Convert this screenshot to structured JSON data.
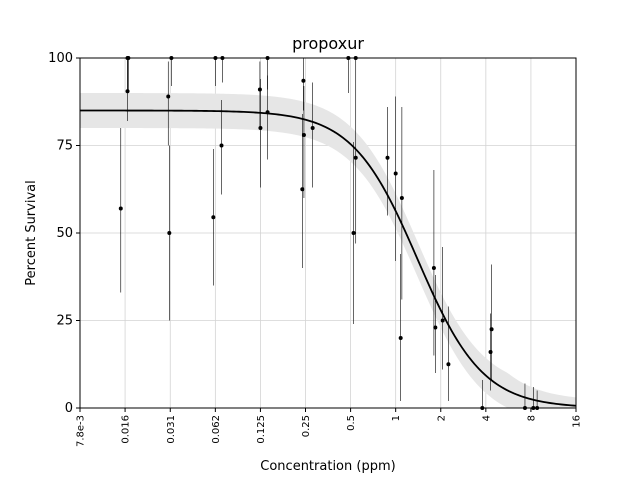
{
  "chart_data": {
    "type": "scatter",
    "title": "propoxur",
    "xlabel": "Concentration (ppm)",
    "ylabel": "Percent Survival",
    "x_scale": "log2",
    "xlim": [
      0.0078,
      16
    ],
    "ylim": [
      0,
      100
    ],
    "x_ticks": [
      {
        "value": 0.0078,
        "label": "7.8e-3"
      },
      {
        "value": 0.0156,
        "label": "0.016"
      },
      {
        "value": 0.03125,
        "label": "0.031"
      },
      {
        "value": 0.0625,
        "label": "0.062"
      },
      {
        "value": 0.125,
        "label": "0.125"
      },
      {
        "value": 0.25,
        "label": "0.25"
      },
      {
        "value": 0.5,
        "label": "0.5"
      },
      {
        "value": 1,
        "label": "1"
      },
      {
        "value": 2,
        "label": "2"
      },
      {
        "value": 4,
        "label": "4"
      },
      {
        "value": 8,
        "label": "8"
      },
      {
        "value": 16,
        "label": "16"
      }
    ],
    "y_ticks": [
      {
        "value": 0,
        "label": "0"
      },
      {
        "value": 25,
        "label": "25"
      },
      {
        "value": 50,
        "label": "50"
      },
      {
        "value": 75,
        "label": "75"
      },
      {
        "value": 100,
        "label": "100"
      }
    ],
    "grid": true,
    "points": [
      {
        "x": 0.0146,
        "y": 57,
        "lo": 33,
        "hi": 80
      },
      {
        "x": 0.0162,
        "y": 100,
        "lo": 90,
        "hi": 100
      },
      {
        "x": 0.0162,
        "y": 90.5,
        "lo": 82,
        "hi": 100
      },
      {
        "x": 0.0164,
        "y": 100,
        "lo": 91,
        "hi": 100
      },
      {
        "x": 0.0303,
        "y": 89,
        "lo": 75,
        "hi": 99
      },
      {
        "x": 0.0308,
        "y": 50,
        "lo": 25,
        "hi": 75
      },
      {
        "x": 0.0318,
        "y": 100,
        "lo": 92,
        "hi": 100
      },
      {
        "x": 0.0606,
        "y": 54.5,
        "lo": 35,
        "hi": 74
      },
      {
        "x": 0.0626,
        "y": 100,
        "lo": 92,
        "hi": 100
      },
      {
        "x": 0.0687,
        "y": 75,
        "lo": 61,
        "hi": 88
      },
      {
        "x": 0.0697,
        "y": 100,
        "lo": 93,
        "hi": 100
      },
      {
        "x": 0.124,
        "y": 91,
        "lo": 80,
        "hi": 99
      },
      {
        "x": 0.125,
        "y": 80,
        "lo": 63,
        "hi": 94
      },
      {
        "x": 0.1395,
        "y": 100,
        "lo": 91,
        "hi": 100
      },
      {
        "x": 0.1395,
        "y": 84.5,
        "lo": 71,
        "hi": 95
      },
      {
        "x": 0.238,
        "y": 62.5,
        "lo": 40,
        "hi": 84
      },
      {
        "x": 0.242,
        "y": 93.5,
        "lo": 85,
        "hi": 100
      },
      {
        "x": 0.244,
        "y": 78,
        "lo": 60,
        "hi": 92
      },
      {
        "x": 0.279,
        "y": 80,
        "lo": 63,
        "hi": 93
      },
      {
        "x": 0.483,
        "y": 100,
        "lo": 90,
        "hi": 100
      },
      {
        "x": 0.523,
        "y": 50,
        "lo": 24,
        "hi": 76
      },
      {
        "x": 0.541,
        "y": 71.5,
        "lo": 47,
        "hi": 92
      },
      {
        "x": 0.541,
        "y": 100,
        "lo": 92,
        "hi": 100
      },
      {
        "x": 0.882,
        "y": 71.5,
        "lo": 55,
        "hi": 86
      },
      {
        "x": 1.0,
        "y": 67,
        "lo": 42,
        "hi": 89
      },
      {
        "x": 1.08,
        "y": 20,
        "lo": 2,
        "hi": 44
      },
      {
        "x": 1.1,
        "y": 60,
        "lo": 31,
        "hi": 86
      },
      {
        "x": 1.8,
        "y": 40,
        "lo": 15,
        "hi": 68
      },
      {
        "x": 1.84,
        "y": 23,
        "lo": 10,
        "hi": 38
      },
      {
        "x": 2.06,
        "y": 25,
        "lo": 11,
        "hi": 46
      },
      {
        "x": 2.25,
        "y": 12.5,
        "lo": 2,
        "hi": 29
      },
      {
        "x": 3.79,
        "y": 0,
        "lo": 0,
        "hi": 8
      },
      {
        "x": 4.3,
        "y": 16,
        "lo": 5,
        "hi": 27
      },
      {
        "x": 4.37,
        "y": 22.5,
        "lo": 8,
        "hi": 41
      },
      {
        "x": 7.3,
        "y": 0,
        "lo": 0,
        "hi": 7
      },
      {
        "x": 8.3,
        "y": 0,
        "lo": 0,
        "hi": 6
      },
      {
        "x": 8.8,
        "y": 0,
        "lo": 0,
        "hi": 5
      }
    ],
    "fit": {
      "model": "log-logistic",
      "top": 85,
      "bottom": 0,
      "ec50": 1.4,
      "slope": 2.0,
      "band_halfwidth": 5
    },
    "colors": {
      "points": "#000000",
      "fit_line": "#000000",
      "band": "#e6e6e6",
      "grid": "#d3d3d3"
    }
  }
}
